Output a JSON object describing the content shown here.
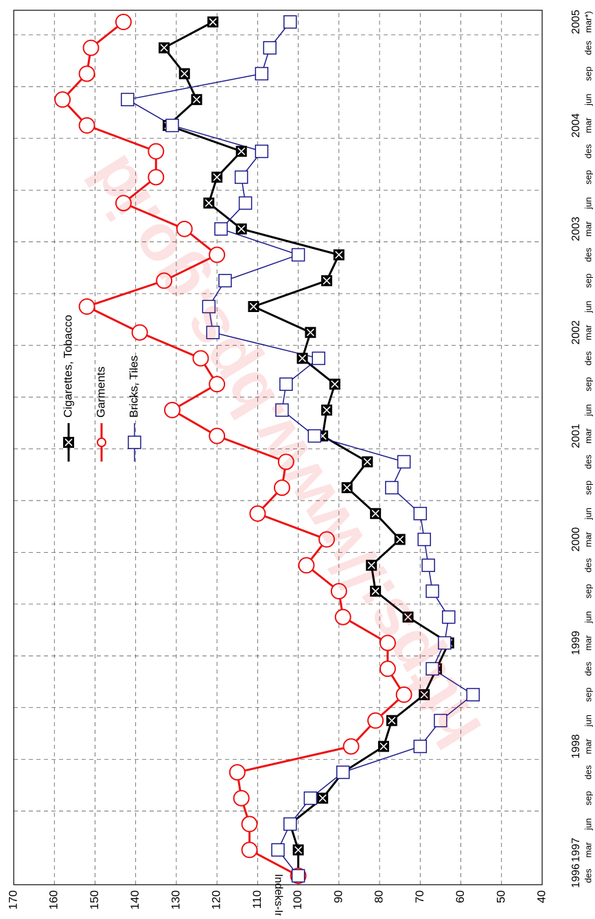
{
  "chart_data": {
    "type": "line",
    "y_label": "Indeks-Index",
    "watermark": "https://www.bps.go.id",
    "categories": [
      "des",
      "mar",
      "jun",
      "sep",
      "des",
      "mar",
      "jun",
      "sep",
      "des",
      "mar",
      "jun",
      "sep",
      "des",
      "mar",
      "jun",
      "sep",
      "des",
      "mar",
      "jun",
      "sep",
      "des",
      "mar",
      "jun",
      "sep",
      "des",
      "mar",
      "jun",
      "sep",
      "des",
      "mar",
      "jun",
      "sep",
      "des",
      "mar*)"
    ],
    "year_labels": [
      "1996",
      "1997",
      null,
      null,
      null,
      "1998",
      null,
      null,
      null,
      "1999",
      null,
      null,
      null,
      "2000",
      null,
      null,
      null,
      "2001",
      null,
      null,
      null,
      "2002",
      null,
      null,
      null,
      "2003",
      null,
      null,
      null,
      "2004",
      null,
      null,
      null,
      "2005"
    ],
    "series": [
      {
        "name": "Cigarettes, Tobacco",
        "color": "#000000",
        "marker": "xsquare",
        "values": [
          100,
          100,
          102,
          94,
          89,
          79,
          77,
          69,
          66,
          63,
          73,
          81,
          82,
          75,
          81,
          88,
          83,
          94,
          93,
          91,
          99,
          97,
          111,
          93,
          90,
          114,
          122,
          120,
          114,
          132,
          125,
          128,
          133,
          121
        ]
      },
      {
        "name": "Garments",
        "color": "#ee1111",
        "marker": "circle",
        "values": [
          100,
          112,
          112,
          114,
          115,
          87,
          81,
          74,
          78,
          78,
          89,
          90,
          98,
          93,
          110,
          104,
          103,
          120,
          131,
          120,
          124,
          139,
          152,
          133,
          120,
          128,
          143,
          135,
          135,
          152,
          158,
          152,
          151,
          143
        ]
      },
      {
        "name": "Bricks, Tiles",
        "color": "#1a1a8c",
        "marker": "square",
        "values": [
          100,
          105,
          102,
          97,
          89,
          70,
          65,
          57,
          67,
          64,
          63,
          67,
          68,
          69,
          70,
          77,
          74,
          96,
          104,
          103,
          95,
          121,
          122,
          118,
          100,
          119,
          113,
          114,
          109,
          131,
          142,
          109,
          107,
          102
        ]
      }
    ],
    "ylim": [
      40,
      170
    ],
    "yticks": [
      40,
      50,
      60,
      70,
      80,
      90,
      100,
      110,
      120,
      130,
      140,
      150,
      160,
      170
    ],
    "grid": true
  }
}
